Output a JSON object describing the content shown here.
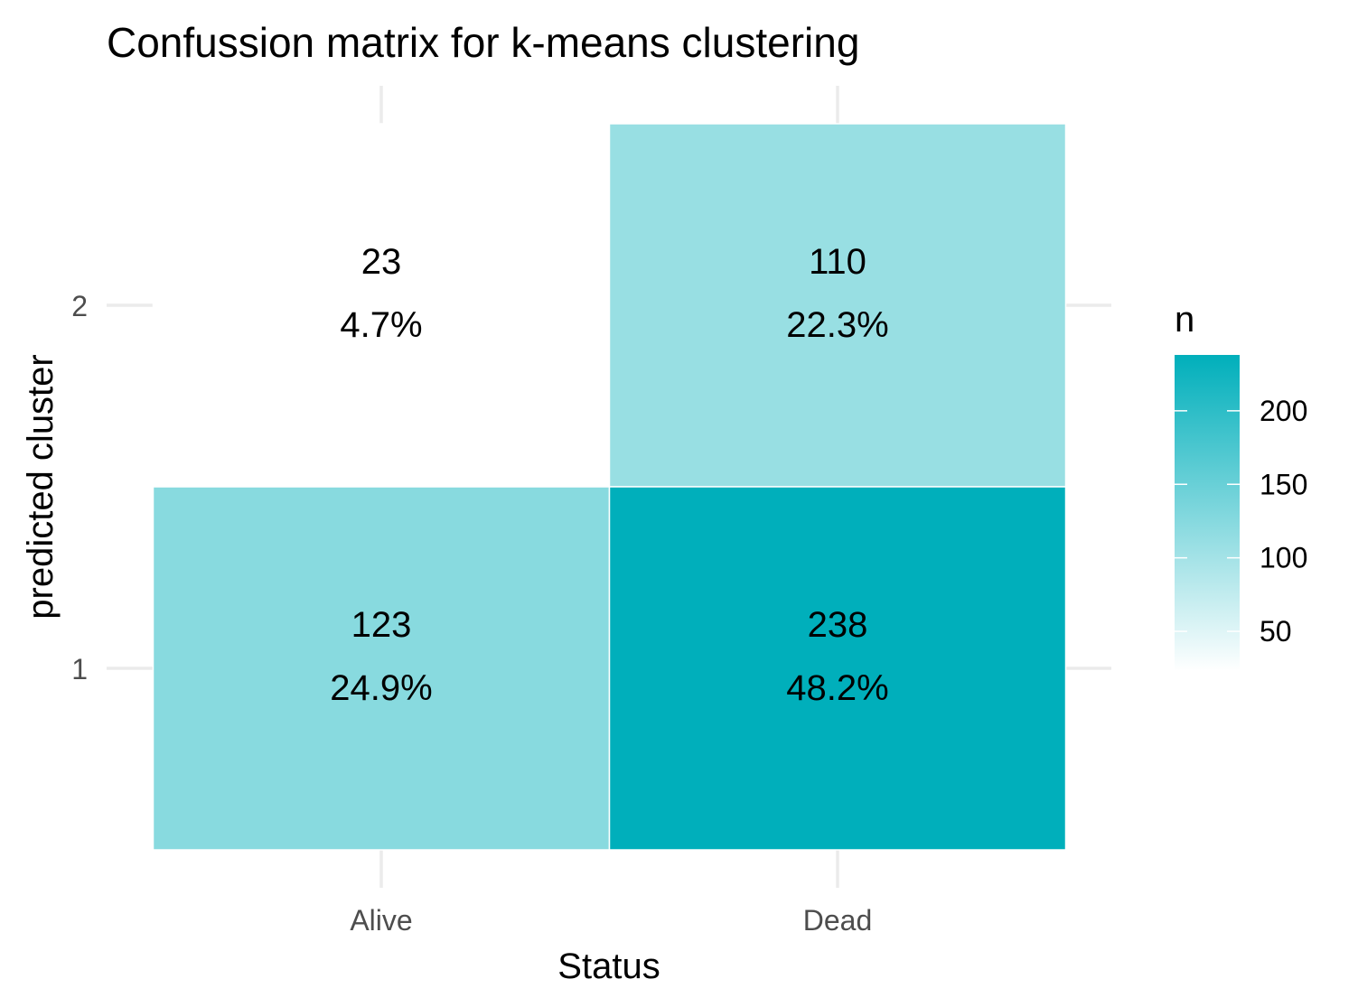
{
  "chart_data": {
    "type": "heatmap",
    "title": "Confussion matrix for k-means clustering",
    "xlabel": "Status",
    "ylabel": "predicted cluster",
    "x_categories": [
      "Alive",
      "Dead"
    ],
    "y_categories": [
      "1",
      "2"
    ],
    "cells": [
      {
        "x": "Alive",
        "y": "2",
        "n": 23,
        "label": "23",
        "pct": "4.7%"
      },
      {
        "x": "Dead",
        "y": "2",
        "n": 110,
        "label": "110",
        "pct": "22.3%"
      },
      {
        "x": "Alive",
        "y": "1",
        "n": 123,
        "label": "123",
        "pct": "24.9%"
      },
      {
        "x": "Dead",
        "y": "1",
        "n": 238,
        "label": "238",
        "pct": "48.2%"
      }
    ],
    "legend": {
      "title": "n",
      "min": 23,
      "max": 238,
      "breaks": [
        50,
        100,
        150,
        200
      ],
      "break_labels": [
        "50",
        "100",
        "150",
        "200"
      ]
    },
    "colors": {
      "low": "#ffffff",
      "high": "#00afbb"
    },
    "grid": true
  }
}
